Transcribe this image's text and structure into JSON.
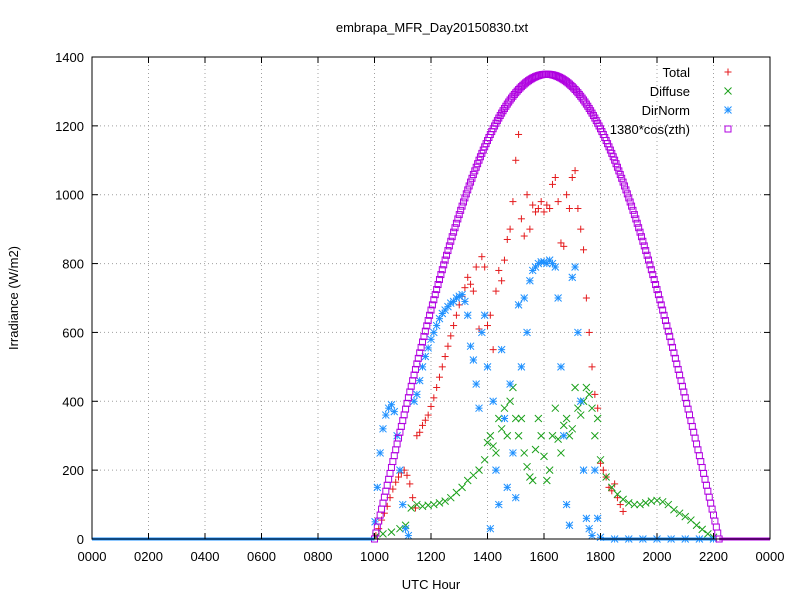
{
  "chart_data": {
    "type": "scatter",
    "title": "embrapa_MFR_Day20150830.txt",
    "xlabel": "UTC Hour",
    "ylabel": "Irradiance (W/m2)",
    "xlim": [
      0,
      2400
    ],
    "ylim": [
      0,
      1400
    ],
    "x_ticks": [
      "0000",
      "0200",
      "0400",
      "0600",
      "0800",
      "1000",
      "1200",
      "1400",
      "1600",
      "1800",
      "2000",
      "2200",
      "0000"
    ],
    "y_ticks": [
      0,
      200,
      400,
      600,
      800,
      1000,
      1200,
      1400
    ],
    "grid": true,
    "legend_position": "top-right",
    "series": [
      {
        "name": "Total",
        "marker": "plus",
        "color": "#e41a1c",
        "points": [
          [
            1005,
            10
          ],
          [
            1015,
            30
          ],
          [
            1025,
            55
          ],
          [
            1035,
            75
          ],
          [
            1045,
            95
          ],
          [
            1055,
            120
          ],
          [
            1065,
            145
          ],
          [
            1075,
            165
          ],
          [
            1085,
            180
          ],
          [
            1095,
            192
          ],
          [
            1105,
            200
          ],
          [
            1115,
            185
          ],
          [
            1125,
            160
          ],
          [
            1135,
            120
          ],
          [
            1145,
            90
          ],
          [
            1150,
            300
          ],
          [
            1160,
            310
          ],
          [
            1170,
            330
          ],
          [
            1180,
            345
          ],
          [
            1190,
            360
          ],
          [
            1200,
            385
          ],
          [
            1210,
            410
          ],
          [
            1220,
            440
          ],
          [
            1230,
            470
          ],
          [
            1240,
            500
          ],
          [
            1250,
            530
          ],
          [
            1260,
            560
          ],
          [
            1270,
            590
          ],
          [
            1280,
            620
          ],
          [
            1290,
            650
          ],
          [
            1300,
            680
          ],
          [
            1310,
            705
          ],
          [
            1320,
            730
          ],
          [
            1330,
            760
          ],
          [
            1340,
            740
          ],
          [
            1350,
            720
          ],
          [
            1360,
            790
          ],
          [
            1370,
            610
          ],
          [
            1380,
            820
          ],
          [
            1390,
            790
          ],
          [
            1400,
            620
          ],
          [
            1410,
            650
          ],
          [
            1420,
            550
          ],
          [
            1430,
            720
          ],
          [
            1440,
            780
          ],
          [
            1450,
            750
          ],
          [
            1460,
            810
          ],
          [
            1470,
            870
          ],
          [
            1480,
            900
          ],
          [
            1490,
            980
          ],
          [
            1500,
            1100
          ],
          [
            1510,
            1175
          ],
          [
            1520,
            930
          ],
          [
            1530,
            880
          ],
          [
            1540,
            1000
          ],
          [
            1550,
            900
          ],
          [
            1560,
            970
          ],
          [
            1570,
            950
          ],
          [
            1580,
            960
          ],
          [
            1590,
            980
          ],
          [
            1600,
            950
          ],
          [
            1610,
            970
          ],
          [
            1620,
            960
          ],
          [
            1630,
            1030
          ],
          [
            1640,
            1050
          ],
          [
            1650,
            980
          ],
          [
            1660,
            860
          ],
          [
            1670,
            850
          ],
          [
            1680,
            1000
          ],
          [
            1690,
            960
          ],
          [
            1700,
            1050
          ],
          [
            1710,
            1070
          ],
          [
            1720,
            960
          ],
          [
            1730,
            900
          ],
          [
            1740,
            840
          ],
          [
            1750,
            700
          ],
          [
            1760,
            600
          ],
          [
            1770,
            500
          ],
          [
            1780,
            420
          ],
          [
            1790,
            380
          ],
          [
            1800,
            220
          ],
          [
            1810,
            200
          ],
          [
            1820,
            180
          ],
          [
            1830,
            150
          ],
          [
            1840,
            140
          ],
          [
            1850,
            160
          ],
          [
            1860,
            120
          ],
          [
            1870,
            100
          ],
          [
            1880,
            80
          ]
        ]
      },
      {
        "name": "Diffuse",
        "marker": "cross",
        "color": "#1aa01a",
        "points": [
          [
            1005,
            8
          ],
          [
            1030,
            15
          ],
          [
            1060,
            20
          ],
          [
            1090,
            30
          ],
          [
            1110,
            40
          ],
          [
            1130,
            90
          ],
          [
            1150,
            100
          ],
          [
            1170,
            95
          ],
          [
            1190,
            98
          ],
          [
            1210,
            100
          ],
          [
            1230,
            105
          ],
          [
            1250,
            110
          ],
          [
            1270,
            120
          ],
          [
            1290,
            135
          ],
          [
            1310,
            150
          ],
          [
            1330,
            170
          ],
          [
            1350,
            185
          ],
          [
            1370,
            200
          ],
          [
            1390,
            230
          ],
          [
            1400,
            280
          ],
          [
            1410,
            300
          ],
          [
            1420,
            270
          ],
          [
            1430,
            250
          ],
          [
            1440,
            350
          ],
          [
            1450,
            320
          ],
          [
            1460,
            380
          ],
          [
            1470,
            300
          ],
          [
            1480,
            400
          ],
          [
            1490,
            440
          ],
          [
            1500,
            350
          ],
          [
            1510,
            300
          ],
          [
            1520,
            350
          ],
          [
            1530,
            250
          ],
          [
            1540,
            210
          ],
          [
            1550,
            180
          ],
          [
            1560,
            170
          ],
          [
            1570,
            260
          ],
          [
            1580,
            350
          ],
          [
            1590,
            300
          ],
          [
            1600,
            240
          ],
          [
            1610,
            170
          ],
          [
            1620,
            200
          ],
          [
            1630,
            300
          ],
          [
            1640,
            380
          ],
          [
            1650,
            290
          ],
          [
            1660,
            250
          ],
          [
            1670,
            330
          ],
          [
            1680,
            350
          ],
          [
            1690,
            300
          ],
          [
            1700,
            320
          ],
          [
            1710,
            440
          ],
          [
            1720,
            380
          ],
          [
            1730,
            360
          ],
          [
            1740,
            400
          ],
          [
            1750,
            440
          ],
          [
            1760,
            420
          ],
          [
            1770,
            380
          ],
          [
            1780,
            300
          ],
          [
            1790,
            350
          ],
          [
            1800,
            230
          ],
          [
            1820,
            180
          ],
          [
            1840,
            150
          ],
          [
            1860,
            130
          ],
          [
            1880,
            115
          ],
          [
            1900,
            105
          ],
          [
            1920,
            100
          ],
          [
            1940,
            100
          ],
          [
            1960,
            105
          ],
          [
            1980,
            110
          ],
          [
            2000,
            112
          ],
          [
            2020,
            108
          ],
          [
            2040,
            100
          ],
          [
            2060,
            85
          ],
          [
            2080,
            75
          ],
          [
            2100,
            65
          ],
          [
            2120,
            55
          ],
          [
            2140,
            40
          ],
          [
            2160,
            28
          ],
          [
            2180,
            15
          ],
          [
            2200,
            5
          ]
        ]
      },
      {
        "name": "DirNorm",
        "marker": "star",
        "color": "#1e90ff",
        "points": [
          [
            1002,
            50
          ],
          [
            1010,
            150
          ],
          [
            1020,
            250
          ],
          [
            1030,
            320
          ],
          [
            1040,
            360
          ],
          [
            1050,
            380
          ],
          [
            1060,
            390
          ],
          [
            1070,
            370
          ],
          [
            1080,
            300
          ],
          [
            1090,
            200
          ],
          [
            1100,
            100
          ],
          [
            1110,
            30
          ],
          [
            1120,
            10
          ],
          [
            1140,
            400
          ],
          [
            1150,
            420
          ],
          [
            1160,
            460
          ],
          [
            1170,
            500
          ],
          [
            1180,
            530
          ],
          [
            1190,
            555
          ],
          [
            1200,
            580
          ],
          [
            1210,
            600
          ],
          [
            1220,
            620
          ],
          [
            1230,
            640
          ],
          [
            1240,
            655
          ],
          [
            1250,
            665
          ],
          [
            1260,
            675
          ],
          [
            1270,
            685
          ],
          [
            1280,
            690
          ],
          [
            1290,
            700
          ],
          [
            1300,
            705
          ],
          [
            1310,
            710
          ],
          [
            1320,
            690
          ],
          [
            1330,
            650
          ],
          [
            1340,
            560
          ],
          [
            1350,
            520
          ],
          [
            1360,
            450
          ],
          [
            1370,
            380
          ],
          [
            1380,
            600
          ],
          [
            1390,
            650
          ],
          [
            1400,
            500
          ],
          [
            1410,
            30
          ],
          [
            1420,
            400
          ],
          [
            1430,
            200
          ],
          [
            1440,
            100
          ],
          [
            1450,
            550
          ],
          [
            1460,
            350
          ],
          [
            1470,
            150
          ],
          [
            1480,
            450
          ],
          [
            1490,
            250
          ],
          [
            1500,
            120
          ],
          [
            1510,
            680
          ],
          [
            1520,
            500
          ],
          [
            1530,
            700
          ],
          [
            1540,
            600
          ],
          [
            1550,
            750
          ],
          [
            1560,
            780
          ],
          [
            1570,
            790
          ],
          [
            1580,
            800
          ],
          [
            1590,
            805
          ],
          [
            1600,
            805
          ],
          [
            1610,
            800
          ],
          [
            1620,
            810
          ],
          [
            1630,
            800
          ],
          [
            1640,
            790
          ],
          [
            1650,
            700
          ],
          [
            1660,
            500
          ],
          [
            1670,
            300
          ],
          [
            1680,
            100
          ],
          [
            1690,
            40
          ],
          [
            1700,
            760
          ],
          [
            1710,
            790
          ],
          [
            1720,
            600
          ],
          [
            1730,
            400
          ],
          [
            1740,
            200
          ],
          [
            1750,
            60
          ],
          [
            1760,
            30
          ],
          [
            1770,
            10
          ],
          [
            1780,
            200
          ],
          [
            1790,
            60
          ],
          [
            1800,
            5
          ],
          [
            1850,
            0
          ],
          [
            1900,
            0
          ],
          [
            1950,
            0
          ],
          [
            2000,
            0
          ],
          [
            2050,
            0
          ],
          [
            2100,
            0
          ],
          [
            2150,
            0
          ],
          [
            2200,
            0
          ]
        ]
      },
      {
        "name": "1380*cos(zth)",
        "marker": "square",
        "color": "#b000e0",
        "curve": {
          "peak_hour": 1610,
          "peak_value": 1350,
          "start_hour": 1000,
          "end_hour": 2220,
          "step": 5
        }
      }
    ]
  }
}
